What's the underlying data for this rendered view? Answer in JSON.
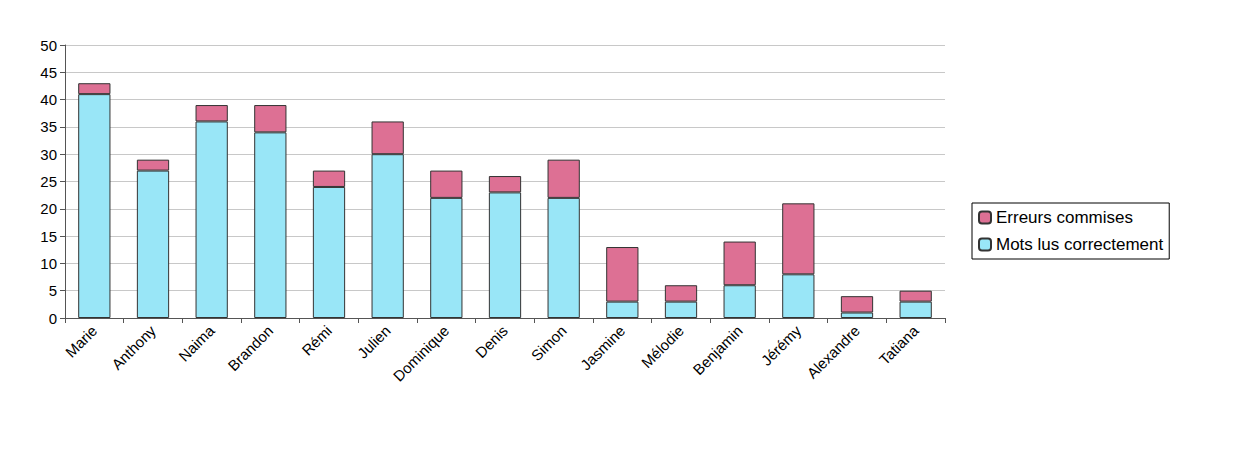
{
  "chart_data": {
    "type": "bar",
    "stacked": true,
    "grid": true,
    "legend": "right",
    "categories": [
      "Marie",
      "Anthony",
      "Naima",
      "Brandon",
      "Rémi",
      "Julien",
      "Dominique",
      "Denis",
      "Simon",
      "Jasmine",
      "Mélodie",
      "Benjamin",
      "Jérémy",
      "Alexandre",
      "Tatiana"
    ],
    "series": [
      {
        "name": "Mots lus correctement",
        "color": "#99e6f7",
        "values": [
          41,
          27,
          36,
          34,
          24,
          30,
          22,
          23,
          22,
          3,
          3,
          6,
          8,
          1,
          3
        ]
      },
      {
        "name": "Erreurs commises",
        "color": "#dd7094",
        "values": [
          2,
          2,
          3,
          5,
          3,
          6,
          5,
          3,
          7,
          10,
          3,
          8,
          13,
          3,
          2
        ]
      }
    ],
    "ylim": [
      0,
      50
    ],
    "yticks": [
      0,
      5,
      10,
      15,
      20,
      25,
      30,
      35,
      40,
      45,
      50
    ]
  }
}
